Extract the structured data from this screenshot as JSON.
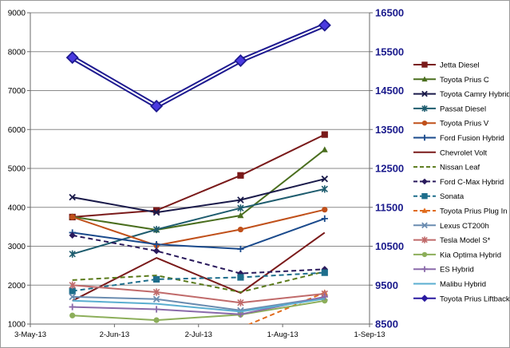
{
  "chart_data": {
    "type": "line",
    "title": "",
    "xlabel": "",
    "ylabel": "",
    "x_ticks": [
      "3-May-13",
      "2-Jun-13",
      "2-Jul-13",
      "1-Aug-13",
      "1-Sep-13"
    ],
    "x_tick_dates": [
      "2013-05-03",
      "2013-06-02",
      "2013-07-02",
      "2013-08-01",
      "2013-09-01"
    ],
    "xlim": [
      "2013-05-03",
      "2013-09-01"
    ],
    "y_left_ticks": [
      "1000",
      "2000",
      "3000",
      "4000",
      "5000",
      "6000",
      "7000",
      "8000",
      "9000"
    ],
    "ylim_left": [
      1000,
      9000
    ],
    "y_right_ticks": [
      "8500",
      "9500",
      "10500",
      "11500",
      "12500",
      "13500",
      "14500",
      "15500",
      "16500"
    ],
    "ylim_right": [
      8500,
      16500
    ],
    "grid": "horizontal",
    "legend_position": "right",
    "x_dates": [
      "2013-05-18",
      "2013-06-17",
      "2013-07-17",
      "2013-08-16"
    ],
    "series": [
      {
        "name": "Jetta Diesel",
        "values": [
          3750,
          3920,
          4820,
          5870
        ],
        "color": "#7a1a1a",
        "marker": "square",
        "dash": false,
        "axis": "left"
      },
      {
        "name": "Toyota Prius C",
        "values": [
          3760,
          3420,
          3790,
          5480
        ],
        "color": "#4a6e1e",
        "marker": "triangle",
        "dash": false,
        "axis": "left"
      },
      {
        "name": "Toyota Camry Hybrid",
        "values": [
          4260,
          3870,
          4190,
          4730
        ],
        "color": "#1a1a4a",
        "marker": "x",
        "dash": false,
        "axis": "left"
      },
      {
        "name": "Passat Diesel",
        "values": [
          2800,
          3430,
          3980,
          4470
        ],
        "color": "#1e5c6e",
        "marker": "star",
        "dash": false,
        "axis": "left"
      },
      {
        "name": "Toyota Prius V",
        "values": [
          3750,
          3020,
          3430,
          3940
        ],
        "color": "#c0501a",
        "marker": "circle",
        "dash": false,
        "axis": "left"
      },
      {
        "name": "Ford Fusion Hybrid",
        "values": [
          3350,
          3050,
          2930,
          3710
        ],
        "color": "#1a4a8c",
        "marker": "plus",
        "dash": false,
        "axis": "left"
      },
      {
        "name": "Chevrolet Volt",
        "values": [
          1600,
          2700,
          1800,
          3350
        ],
        "color": "#7a1a1a",
        "marker": "none",
        "dash": false,
        "axis": "left"
      },
      {
        "name": "Nissan Leaf",
        "values": [
          2130,
          2250,
          1820,
          2350
        ],
        "color": "#5a7a1a",
        "marker": "none",
        "dash": true,
        "axis": "left"
      },
      {
        "name": "Ford C-Max Hybrid",
        "values": [
          3280,
          2880,
          2300,
          2410
        ],
        "color": "#2a1a5c",
        "marker": "diamond",
        "dash": true,
        "axis": "left"
      },
      {
        "name": "Sonata",
        "values": [
          1850,
          2150,
          2200,
          2320
        ],
        "color": "#1e6e8c",
        "marker": "square",
        "dash": true,
        "axis": "left"
      },
      {
        "name": "Toyota Prius Plug In",
        "x_dates": [
          "2013-07-17",
          "2013-08-16"
        ],
        "values": [
          900,
          1810
        ],
        "color": "#e06a1a",
        "marker": "triangle",
        "dash": true,
        "axis": "left"
      },
      {
        "name": "Lexus CT200h",
        "values": [
          1700,
          1640,
          1350,
          1680
        ],
        "color": "#6a8cb0",
        "marker": "x",
        "dash": false,
        "axis": "left"
      },
      {
        "name": "Tesla Model S*",
        "values": [
          2000,
          1820,
          1550,
          1780
        ],
        "color": "#c06a6a",
        "marker": "star",
        "dash": false,
        "axis": "left"
      },
      {
        "name": "Kia Optima Hybrid",
        "values": [
          1220,
          1100,
          1240,
          1600
        ],
        "color": "#8cae5a",
        "marker": "circle",
        "dash": false,
        "axis": "left"
      },
      {
        "name": "ES Hybrid",
        "values": [
          1440,
          1380,
          1250,
          1700
        ],
        "color": "#8a6aaa",
        "marker": "plus",
        "dash": false,
        "axis": "left"
      },
      {
        "name": "Malibu Hybrid",
        "values": [
          1600,
          1520,
          1320,
          1650
        ],
        "color": "#5aaed0",
        "marker": "none",
        "dash": false,
        "axis": "left"
      },
      {
        "name": "Toyota Prius Liftback",
        "values": [
          15350,
          14100,
          15270,
          16180
        ],
        "color": "#2a1aa0",
        "marker": "diamond",
        "dash": false,
        "axis": "right"
      }
    ]
  }
}
